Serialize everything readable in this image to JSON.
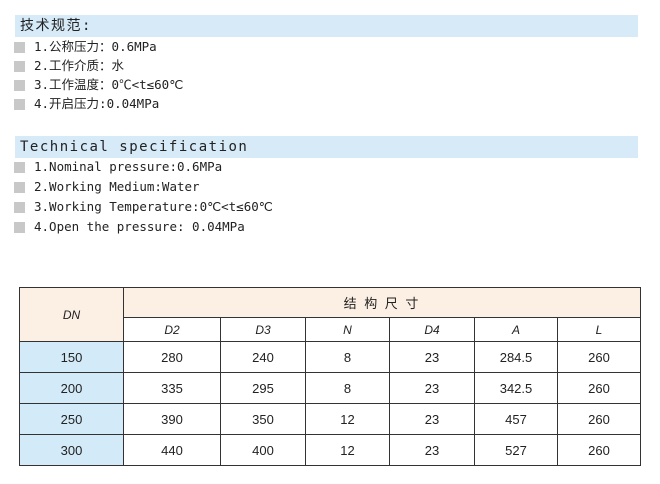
{
  "cn": {
    "title": "技术规范:",
    "items": [
      "1.公称压力：0.6MPa",
      "2.工作介质：水",
      "3.工作温度：0℃<t≤60℃",
      "4.开启压力:0.04MPa"
    ]
  },
  "en": {
    "title": "Technical specification",
    "items": [
      "1.Nominal pressure:0.6MPa",
      "2.Working Medium:Water",
      "3.Working Temperature:0℃<t≤60℃",
      "4.Open the pressure: 0.04MPa"
    ]
  },
  "table": {
    "dn_header": "DN",
    "group_header": "结 构 尺 寸",
    "columns": [
      "D2",
      "D3",
      "N",
      "D4",
      "A",
      "L"
    ],
    "rows": [
      [
        "150",
        "280",
        "240",
        "8",
        "23",
        "284.5",
        "260"
      ],
      [
        "200",
        "335",
        "295",
        "8",
        "23",
        "342.5",
        "260"
      ],
      [
        "250",
        "390",
        "350",
        "12",
        "23",
        "457",
        "260"
      ],
      [
        "300",
        "440",
        "400",
        "12",
        "23",
        "527",
        "260"
      ]
    ]
  },
  "colors": {
    "bar": "#d6eaf8",
    "header": "#fcefe4",
    "dn_column": "#d3eaf8",
    "bullet": "#c8c8c8"
  }
}
